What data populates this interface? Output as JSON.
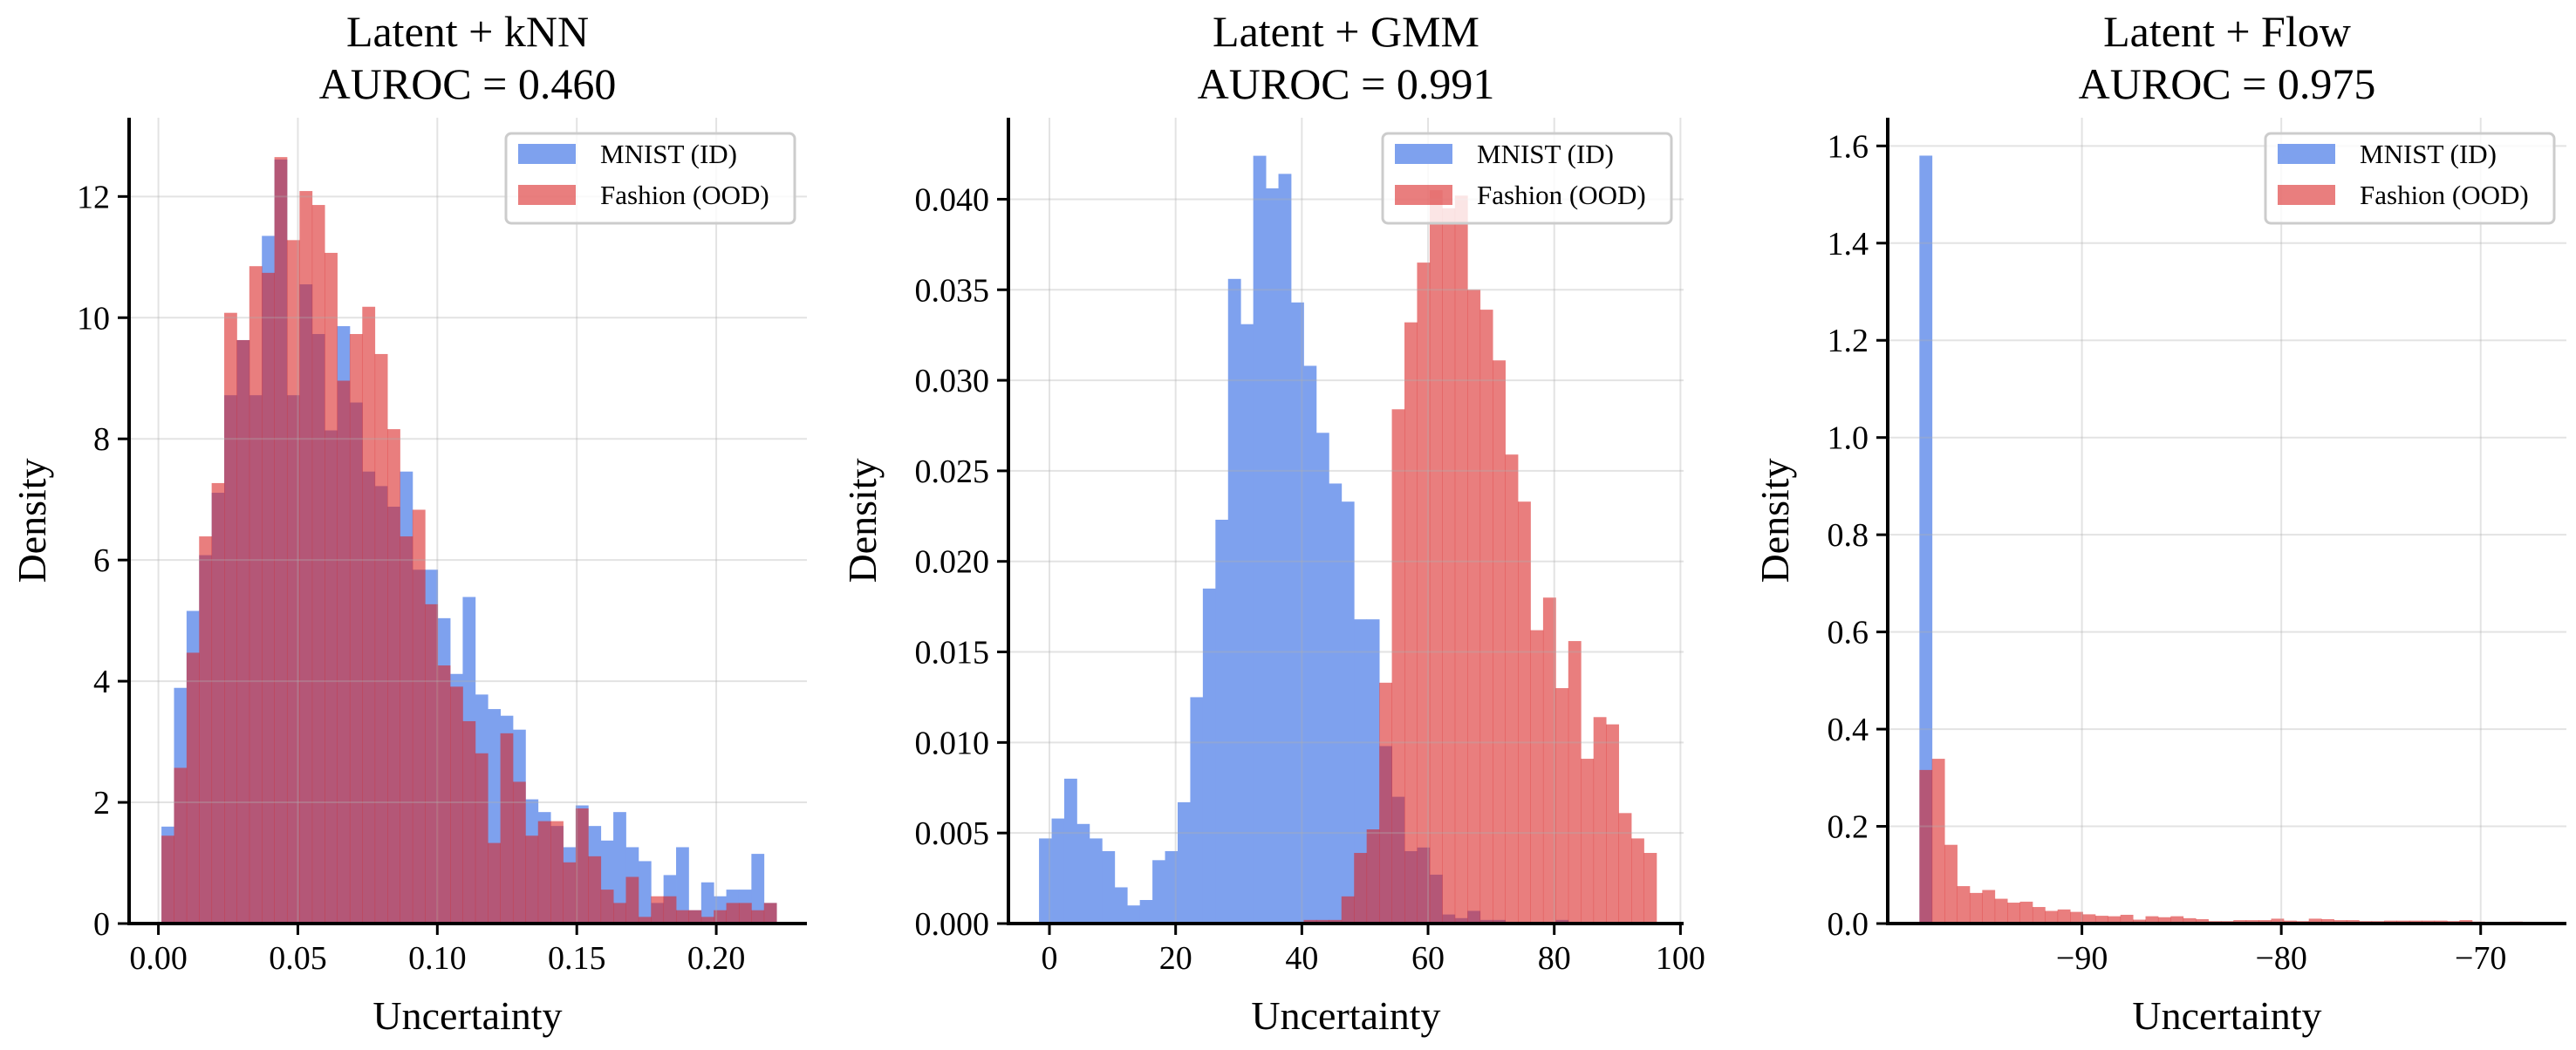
{
  "colors": {
    "id": "#7ea1ee",
    "ood": "#da2323",
    "ood_opacity": 0.59,
    "grid": "#b0b0b0"
  },
  "chart_data": [
    {
      "type": "bar",
      "histogram": true,
      "title_line1": "Latent + kNN",
      "title_line2": "AUROC = 0.460",
      "xlabel": "Uncertainty",
      "ylabel": "Density",
      "xlim": [
        -0.0105,
        0.2325
      ],
      "ylim": [
        0,
        13.3
      ],
      "xticks": [
        0,
        0.05,
        0.1,
        0.15,
        0.2
      ],
      "xtick_labels": [
        "0.00",
        "0.05",
        "0.10",
        "0.15",
        "0.20"
      ],
      "yticks": [
        0,
        2,
        4,
        6,
        8,
        10,
        12
      ],
      "ytick_labels": [
        "0",
        "2",
        "4",
        "6",
        "8",
        "10",
        "12"
      ],
      "grid": true,
      "legend_position": "top-right",
      "bin_start": 0.0011,
      "bin_width": 0.0045,
      "series": [
        {
          "name": "MNIST (ID)",
          "color_key": "id",
          "values": [
            1.6,
            3.89,
            5.16,
            6.08,
            7.11,
            8.72,
            9.63,
            8.72,
            11.35,
            12.61,
            8.72,
            10.55,
            9.73,
            8.14,
            9.86,
            8.6,
            7.46,
            7.22,
            6.88,
            7.46,
            5.84,
            5.84,
            5.04,
            4.12,
            5.39,
            3.78,
            3.54,
            3.43,
            3.2,
            2.05,
            1.84,
            1.61,
            1.26,
            1.95,
            1.61,
            1.37,
            1.84,
            1.26,
            1.03,
            0.34,
            0.8,
            1.26,
            0.22,
            0.68,
            0.45,
            0.56,
            0.56,
            1.15,
            0.34
          ]
        },
        {
          "name": "Fashion (OOD)",
          "color_key": "ood",
          "values": [
            1.45,
            2.57,
            4.47,
            6.39,
            7.27,
            10.08,
            9.63,
            10.85,
            10.74,
            12.65,
            11.28,
            12.09,
            11.86,
            11.07,
            8.96,
            9.73,
            10.18,
            9.4,
            8.16,
            6.39,
            6.83,
            5.27,
            4.26,
            3.91,
            3.34,
            2.81,
            1.33,
            3.14,
            2.34,
            1.45,
            1.69,
            1.69,
            1.01,
            1.9,
            1.11,
            0.56,
            0.34,
            0.77,
            0.11,
            0.45,
            0.45,
            0.22,
            0.22,
            0.11,
            0.22,
            0.34,
            0.34,
            0.22,
            0.34
          ]
        }
      ]
    },
    {
      "type": "bar",
      "histogram": true,
      "title_line1": "Latent + GMM",
      "title_line2": "AUROC = 0.991",
      "xlabel": "Uncertainty",
      "ylabel": "Density",
      "xlim": [
        -6.5,
        100.5
      ],
      "ylim": [
        0,
        0.0445
      ],
      "xticks": [
        0,
        20,
        40,
        60,
        80,
        100
      ],
      "xtick_labels": [
        "0",
        "20",
        "40",
        "60",
        "80",
        "100"
      ],
      "yticks": [
        0,
        0.005,
        0.01,
        0.015,
        0.02,
        0.025,
        0.03,
        0.035,
        0.04
      ],
      "ytick_labels": [
        "0.000",
        "0.005",
        "0.010",
        "0.015",
        "0.020",
        "0.025",
        "0.030",
        "0.035",
        "0.040"
      ],
      "grid": true,
      "legend_position": "top-right",
      "bin_start": -1.65,
      "bin_width": 1.997,
      "series": [
        {
          "name": "MNIST (ID)",
          "color_key": "id",
          "values": [
            0.0047,
            0.0058,
            0.008,
            0.0055,
            0.0047,
            0.004,
            0.002,
            0.001,
            0.0013,
            0.0035,
            0.004,
            0.0067,
            0.0125,
            0.0185,
            0.0223,
            0.0356,
            0.0331,
            0.0424,
            0.0406,
            0.0414,
            0.0343,
            0.0308,
            0.0271,
            0.0243,
            0.0233,
            0.0168,
            0.0168,
            0.0098,
            0.007,
            0.004,
            0.0042,
            0.0027,
            0.0005,
            0.0003,
            0.0007,
            0.0002,
            0.0002,
            0,
            0,
            0,
            0,
            0.0002,
            0,
            0,
            0,
            0,
            0,
            0,
            0
          ]
        },
        {
          "name": "Fashion (OOD)",
          "color_key": "ood",
          "values": [
            0,
            0,
            0,
            0,
            0,
            0,
            0,
            0,
            0,
            0,
            0,
            0,
            0,
            0,
            0,
            0,
            0,
            0,
            0,
            0,
            0,
            0.0002,
            0.0002,
            0.0002,
            0.0015,
            0.0039,
            0.0052,
            0.0133,
            0.0284,
            0.0332,
            0.0365,
            0.0405,
            0.0395,
            0.0402,
            0.035,
            0.0339,
            0.0311,
            0.0259,
            0.0233,
            0.0162,
            0.018,
            0.013,
            0.0156,
            0.0091,
            0.0114,
            0.011,
            0.0061,
            0.0047,
            0.0039
          ]
        }
      ]
    },
    {
      "type": "bar",
      "histogram": true,
      "title_line1": "Latent + Flow",
      "title_line2": "AUROC = 0.975",
      "xlabel": "Uncertainty",
      "ylabel": "Density",
      "xlim": [
        -99.74,
        -65.7
      ],
      "ylim": [
        0,
        1.658
      ],
      "xticks": [
        -90,
        -80,
        -70
      ],
      "xtick_labels": [
        "−90",
        "−80",
        "−70"
      ],
      "yticks": [
        0,
        0.2,
        0.4,
        0.6,
        0.8,
        1.0,
        1.2,
        1.4,
        1.6
      ],
      "ytick_labels": [
        "0.0",
        "0.2",
        "0.4",
        "0.6",
        "0.8",
        "1.0",
        "1.2",
        "1.4",
        "1.6"
      ],
      "grid": true,
      "legend_position": "top-right",
      "bin_start": -98.15,
      "bin_width": 0.63,
      "series": [
        {
          "name": "MNIST (ID)",
          "color_key": "id",
          "values": [
            1.58,
            0,
            0,
            0,
            0,
            0,
            0,
            0,
            0,
            0,
            0,
            0,
            0,
            0,
            0,
            0,
            0,
            0,
            0,
            0,
            0,
            0,
            0,
            0,
            0,
            0,
            0,
            0,
            0,
            0,
            0,
            0,
            0,
            0,
            0,
            0,
            0,
            0,
            0,
            0,
            0,
            0,
            0,
            0,
            0,
            0,
            0,
            0,
            0
          ]
        },
        {
          "name": "Fashion (OOD)",
          "color_key": "ood",
          "values": [
            0.316,
            0.339,
            0.162,
            0.077,
            0.063,
            0.069,
            0.051,
            0.043,
            0.045,
            0.034,
            0.026,
            0.029,
            0.024,
            0.019,
            0.016,
            0.015,
            0.018,
            0.008,
            0.015,
            0.013,
            0.015,
            0.011,
            0.009,
            0.005,
            0.005,
            0.007,
            0.007,
            0.007,
            0.01,
            0.006,
            0.005,
            0.01,
            0.009,
            0.007,
            0.007,
            0.005,
            0.005,
            0.006,
            0.006,
            0.006,
            0.006,
            0.006,
            0.005,
            0.007,
            0.004,
            0.002,
            0.002,
            0.004,
            0.002
          ]
        }
      ]
    }
  ]
}
